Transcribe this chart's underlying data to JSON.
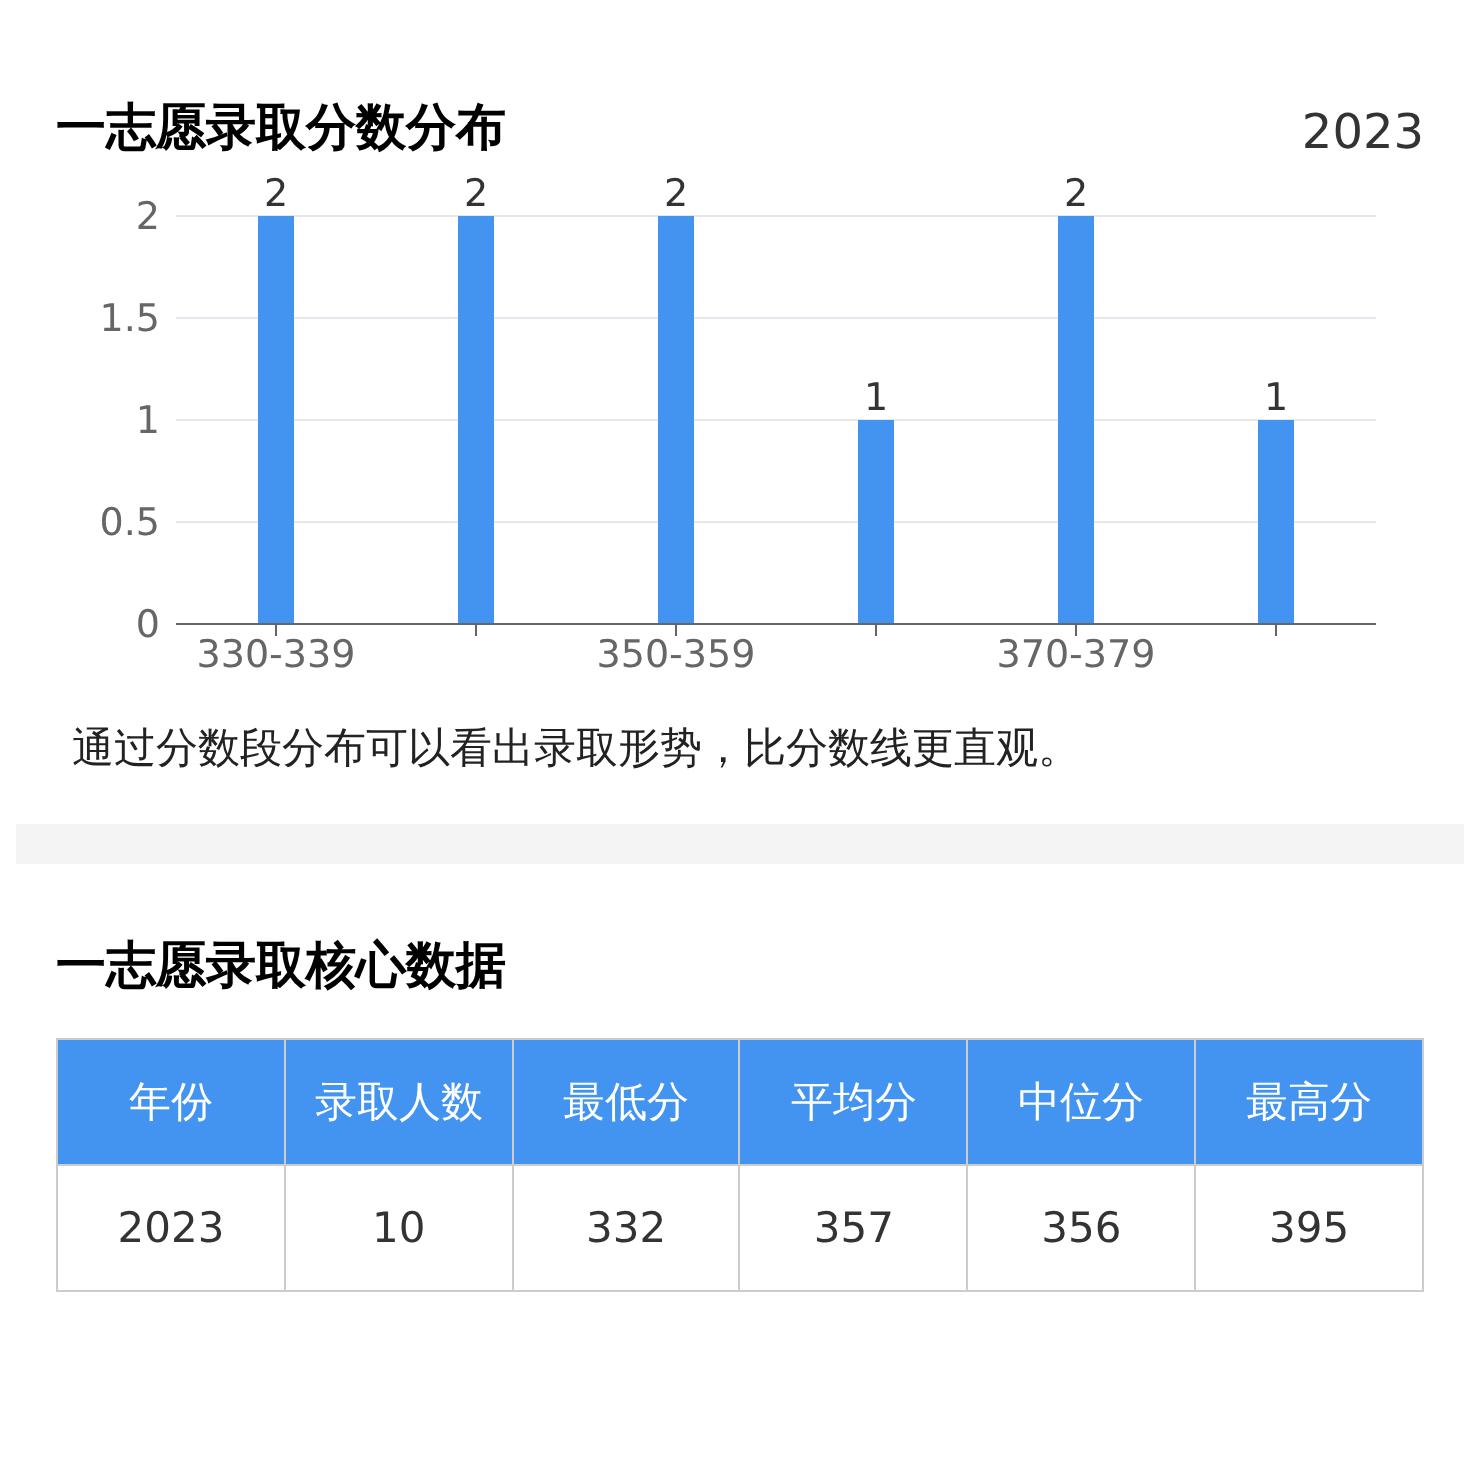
{
  "chart_data": [
    {
      "type": "bar",
      "title": "一志愿录取分数分布",
      "subtitle": "2023",
      "categories": [
        "330-339",
        null,
        "350-359",
        null,
        "370-379",
        null
      ],
      "values": [
        2,
        2,
        2,
        1,
        2,
        1
      ],
      "color": "#4394f0",
      "ylim": [
        0,
        2
      ],
      "yticks": [
        0,
        0.5,
        1,
        1.5,
        2
      ],
      "grid": "y",
      "data_labels": true,
      "annotations": [
        "通过分数段分布可以看出录取形势，比分数线更直观。"
      ]
    },
    {
      "type": "other",
      "title": "一志愿录取核心数据",
      "categories": [
        "年份",
        "录取人数",
        "最低分",
        "平均分",
        "中位分",
        "最高分"
      ],
      "values": [
        2023,
        10,
        332,
        357,
        356,
        395
      ],
      "data_labels": true
    }
  ]
}
